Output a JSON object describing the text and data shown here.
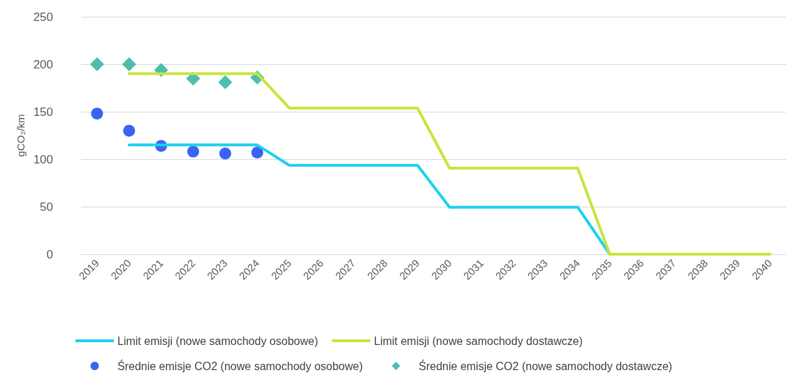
{
  "chart_data": {
    "type": "line",
    "ylabel": "gCO₂/km",
    "categories": [
      "2019",
      "2020",
      "2021",
      "2022",
      "2023",
      "2024",
      "2025",
      "2026",
      "2027",
      "2028",
      "2029",
      "2030",
      "2031",
      "2032",
      "2033",
      "2034",
      "2035",
      "2036",
      "2037",
      "2038",
      "2039",
      "2040"
    ],
    "series": [
      {
        "name": "Limit emisji (nowe samochody osobowe)",
        "marker": "none",
        "color": "#1ed0f0",
        "values": [
          null,
          115,
          115,
          115,
          115,
          115,
          93.6,
          93.6,
          93.6,
          93.6,
          93.6,
          49.5,
          49.5,
          49.5,
          49.5,
          49.5,
          0,
          null,
          null,
          null,
          null,
          null
        ]
      },
      {
        "name": "Limit emisji (nowe samochody dostawcze)",
        "marker": "none",
        "color": "#c8e43c",
        "values": [
          null,
          190,
          190,
          190,
          190,
          190,
          153.9,
          153.9,
          153.9,
          153.9,
          153.9,
          90.6,
          90.6,
          90.6,
          90.6,
          90.6,
          0,
          0,
          0,
          0,
          0,
          0
        ]
      },
      {
        "name": "Średnie emisje CO2 (nowe samochody osobowe)",
        "type": "scatter",
        "marker": "circle",
        "color": "#0a3cf0",
        "values": [
          148,
          130,
          114,
          108,
          106,
          107,
          null,
          null,
          null,
          null,
          null,
          null,
          null,
          null,
          null,
          null,
          null,
          null,
          null,
          null,
          null,
          null
        ]
      },
      {
        "name": "Średnie emisje CO2 (nowe samochody dostawcze)",
        "type": "scatter",
        "marker": "diamond",
        "color": "#1fae9a",
        "values": [
          200,
          200,
          194,
          185,
          181,
          186,
          null,
          null,
          null,
          null,
          null,
          null,
          null,
          null,
          null,
          null,
          null,
          null,
          null,
          null,
          null,
          null
        ]
      }
    ],
    "ylim": [
      0,
      250
    ],
    "yticks": [
      0,
      50,
      100,
      150,
      200,
      250
    ],
    "grid": "y",
    "legend": "bottom"
  }
}
